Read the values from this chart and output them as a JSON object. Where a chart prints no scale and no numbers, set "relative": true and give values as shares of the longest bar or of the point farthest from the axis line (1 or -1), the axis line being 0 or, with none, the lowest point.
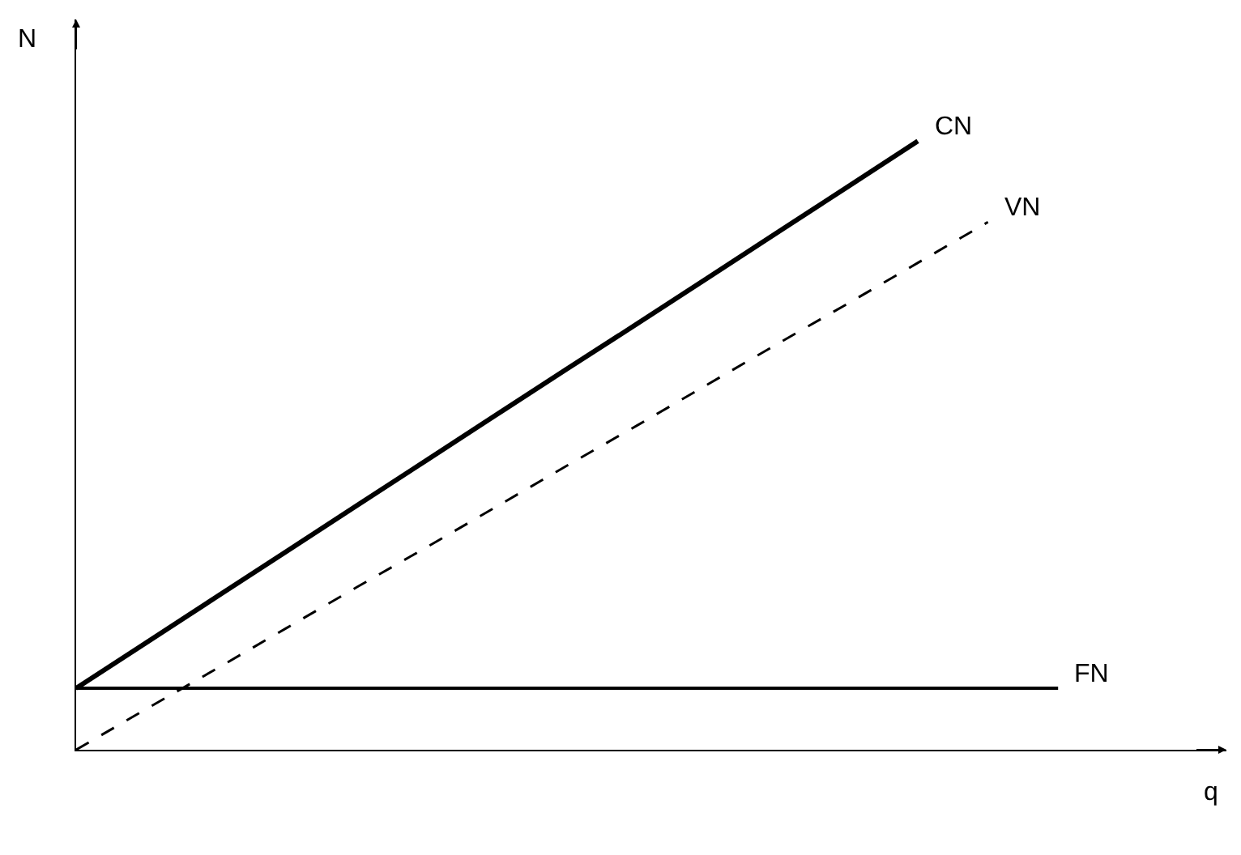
{
  "chart_data": {
    "type": "line",
    "relative": true,
    "xlabel": "q",
    "ylabel": "N",
    "categories": [
      null,
      null,
      null,
      null,
      null,
      null,
      null,
      null,
      null,
      null,
      null,
      null,
      null,
      null,
      null
    ],
    "series": [
      {
        "name": "CN",
        "color": "#000000",
        "line_style": "solid",
        "values": [
          0.101,
          0.176,
          0.251,
          0.326,
          0.401,
          0.476,
          0.551,
          0.626,
          0.7,
          0.775,
          0.85,
          0.925,
          1.0,
          null,
          null
        ]
      },
      {
        "name": "VN",
        "color": "#000000",
        "line_style": "dashed",
        "values": [
          0,
          0.067,
          0.133,
          0.2,
          0.267,
          0.333,
          0.4,
          0.467,
          0.533,
          0.6,
          0.667,
          0.733,
          0.8,
          0.867,
          null
        ]
      },
      {
        "name": "FN",
        "color": "#000000",
        "line_style": "solid",
        "values": [
          0.101,
          0.101,
          0.101,
          0.101,
          0.101,
          0.101,
          0.101,
          0.101,
          0.101,
          0.101,
          0.101,
          0.101,
          0.101,
          0.101,
          0.101
        ]
      }
    ],
    "marker": "none",
    "grid": false,
    "legend": false
  }
}
